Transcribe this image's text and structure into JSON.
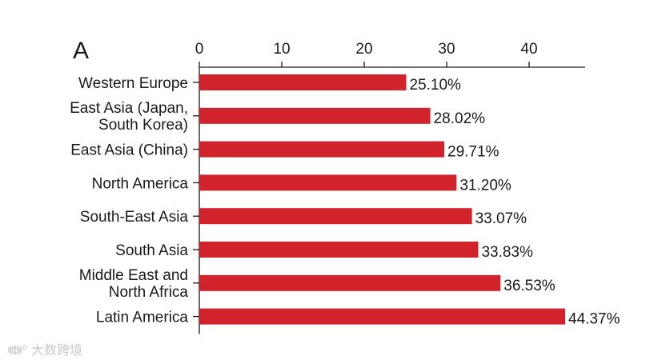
{
  "chart_data": {
    "type": "bar",
    "orientation": "horizontal",
    "panel_label": "A",
    "x_ticks": [
      "0",
      "10",
      "20",
      "30",
      "40"
    ],
    "xlim": [
      0,
      46
    ],
    "categories": [
      [
        "Western Europe"
      ],
      [
        "East Asia (Japan,",
        "South Korea)"
      ],
      [
        "East Asia (China)"
      ],
      [
        "North America"
      ],
      [
        "South-East Asia"
      ],
      [
        "South Asia"
      ],
      [
        "Middle East and",
        "North Africa"
      ],
      [
        "Latin America"
      ]
    ],
    "values": [
      25.1,
      28.02,
      29.71,
      31.2,
      33.07,
      33.83,
      36.53,
      44.37
    ],
    "data_labels": [
      "25.10%",
      "28.02%",
      "29.71%",
      "31.20%",
      "33.07%",
      "33.83%",
      "36.53%",
      "44.37%"
    ],
    "bar_color": "#d0232b",
    "axis_position": "top"
  },
  "watermark": "大数跨境"
}
